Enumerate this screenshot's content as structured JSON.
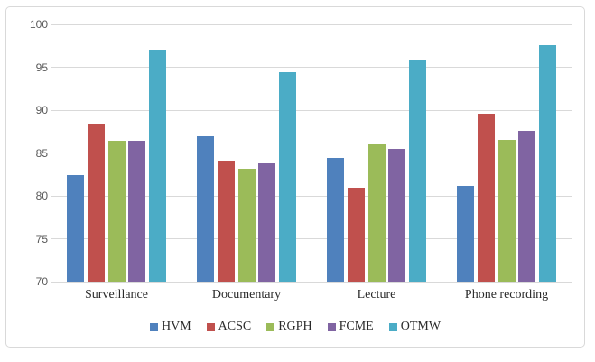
{
  "chart_data": {
    "type": "bar",
    "title": "",
    "xlabel": "",
    "ylabel": "",
    "categories": [
      "Surveillance",
      "Documentary",
      "Lecture",
      "Phone recording"
    ],
    "series": [
      {
        "name": "HVM",
        "color": "#4F81BD",
        "values": [
          82.4,
          86.9,
          84.4,
          81.2
        ]
      },
      {
        "name": "ACSC",
        "color": "#C0504D",
        "values": [
          88.4,
          84.1,
          81.0,
          89.6
        ]
      },
      {
        "name": "RGPH",
        "color": "#9BBB59",
        "values": [
          86.4,
          83.2,
          86.0,
          86.5
        ]
      },
      {
        "name": "FCME",
        "color": "#8064A2",
        "values": [
          86.4,
          83.8,
          85.5,
          87.6
        ]
      },
      {
        "name": "OTMW",
        "color": "#4BACC6",
        "values": [
          97.1,
          94.4,
          95.9,
          97.6
        ]
      }
    ],
    "ylim": [
      70,
      100
    ],
    "yticks": [
      "70",
      "75",
      "80",
      "85",
      "90",
      "95",
      "100"
    ],
    "grid": "horizontal",
    "legend_position": "bottom"
  },
  "style": {
    "frame_border_color": "#d9d9d9",
    "gridline_color": "#d9d9d9",
    "tick_label_color": "#595959",
    "text_color": "#2b2b2b",
    "background": "#ffffff"
  }
}
